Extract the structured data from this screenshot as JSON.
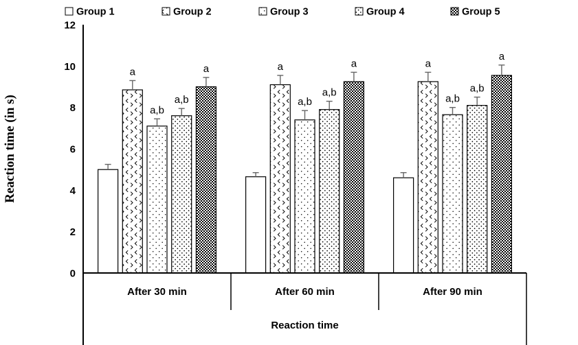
{
  "chart_data": {
    "type": "bar",
    "title": "",
    "xlabel": "Reaction time",
    "ylabel": "Reaction time (in s)",
    "ylim": [
      0,
      12
    ],
    "yticks": [
      0,
      2,
      4,
      6,
      8,
      10,
      12
    ],
    "grid": false,
    "legend_position": "top",
    "categories": [
      "After 30 min",
      "After 60 min",
      "After 90 min"
    ],
    "series": [
      {
        "name": "Group 1",
        "pattern": "plain",
        "values": [
          5.0,
          4.65,
          4.6
        ],
        "errors": [
          0.25,
          0.2,
          0.25
        ],
        "annotations": [
          "",
          "",
          ""
        ]
      },
      {
        "name": "Group 2",
        "pattern": "divot",
        "values": [
          8.85,
          9.1,
          9.25
        ],
        "errors": [
          0.45,
          0.45,
          0.45
        ],
        "annotations": [
          "a",
          "a",
          "a"
        ]
      },
      {
        "name": "Group 3",
        "pattern": "dots-sparse",
        "values": [
          7.1,
          7.4,
          7.65
        ],
        "errors": [
          0.35,
          0.45,
          0.35
        ],
        "annotations": [
          "a,b",
          "a,b",
          "a,b"
        ]
      },
      {
        "name": "Group 4",
        "pattern": "dots-dense",
        "values": [
          7.6,
          7.9,
          8.1
        ],
        "errors": [
          0.35,
          0.4,
          0.4
        ],
        "annotations": [
          "a,b",
          "a,b",
          "a,b"
        ]
      },
      {
        "name": "Group 5",
        "pattern": "checker",
        "values": [
          9.0,
          9.25,
          9.55
        ],
        "errors": [
          0.45,
          0.45,
          0.5
        ],
        "annotations": [
          "a",
          "a",
          "a"
        ]
      }
    ],
    "colors": {
      "bar_fill": "#ffffff",
      "bar_stroke": "#000000",
      "error_bar": "#666666",
      "axis": "#000000",
      "text": "#000000"
    }
  }
}
